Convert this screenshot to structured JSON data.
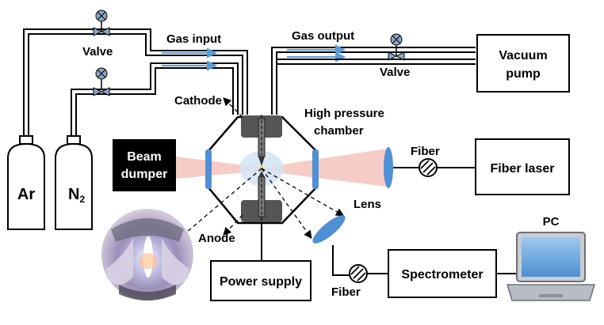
{
  "labels": {
    "gas_input": "Gas input",
    "gas_output": "Gas output",
    "valve_top": "Valve",
    "valve_right": "Valve",
    "vacuum_pump_line1": "Vacuum",
    "vacuum_pump_line2": "pump",
    "cathode": "Cathode",
    "chamber_line1": "High pressure",
    "chamber_line2": "chamber",
    "beam_dumper_line1": "Beam",
    "beam_dumper_line2": "dumper",
    "fiber_top": "Fiber",
    "fiber_laser": "Fiber laser",
    "lens": "Lens",
    "anode": "Anode",
    "power_supply": "Power supply",
    "fiber_bottom": "Fiber",
    "spectrometer": "Spectrometer",
    "pc": "PC",
    "ar": "Ar",
    "n2_base": "N",
    "n2_sub": "2"
  },
  "colors": {
    "pipe": "#000000",
    "flow_arrow": "#5b9bd5",
    "window": "#4f8fd6",
    "laser_beam": "#f4c7c0",
    "electrode": "#555555",
    "valve": "#8aa6c8"
  }
}
